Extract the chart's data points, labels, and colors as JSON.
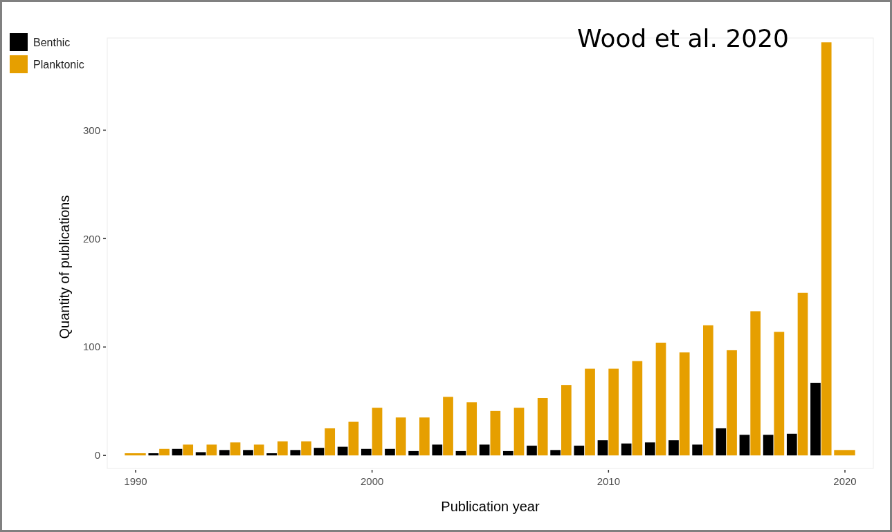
{
  "chart_data": {
    "type": "bar",
    "xlabel": "Publication year",
    "ylabel": "Quantity of publications",
    "annotations": [
      "Wood et al. 2020"
    ],
    "x": [
      1990,
      1991,
      1992,
      1993,
      1994,
      1995,
      1996,
      1997,
      1998,
      1999,
      2000,
      2001,
      2002,
      2003,
      2004,
      2005,
      2006,
      2007,
      2008,
      2009,
      2010,
      2011,
      2012,
      2013,
      2014,
      2015,
      2016,
      2017,
      2018,
      2019,
      2020
    ],
    "series": [
      {
        "name": "Benthic",
        "color": "#000000",
        "values": [
          null,
          2,
          6,
          3,
          5,
          5,
          2,
          5,
          7,
          8,
          6,
          6,
          4,
          10,
          4,
          10,
          4,
          9,
          5,
          9,
          14,
          11,
          12,
          14,
          10,
          25,
          19,
          19,
          20,
          67,
          null
        ]
      },
      {
        "name": "Planktonic",
        "color": "#e69f00",
        "values": [
          2,
          6,
          10,
          10,
          12,
          10,
          13,
          13,
          25,
          31,
          44,
          35,
          35,
          54,
          49,
          41,
          44,
          53,
          65,
          80,
          80,
          87,
          104,
          95,
          120,
          97,
          133,
          114,
          150,
          381,
          5
        ]
      }
    ],
    "xlim": [
      1988.8,
      2021.2
    ],
    "xticks": [
      1990,
      2000,
      2010,
      2020
    ],
    "ylim": [
      -12,
      385
    ],
    "yticks": [
      0,
      100,
      200,
      300
    ],
    "legend": "top left",
    "grid": false
  }
}
